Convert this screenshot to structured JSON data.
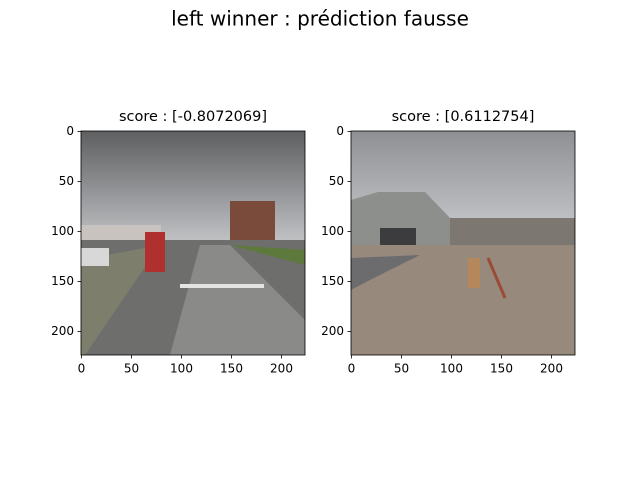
{
  "title": "left winner : prédiction fausse",
  "chart_data": [
    {
      "type": "image",
      "title": "score : [-0.8072069]",
      "xlim": [
        -0.5,
        223.5
      ],
      "ylim": [
        223.5,
        -0.5
      ],
      "xticks": [
        0,
        50,
        100,
        150,
        200
      ],
      "yticks": [
        0,
        50,
        100,
        150,
        200
      ]
    },
    {
      "type": "image",
      "title": "score : [0.6112754]",
      "xlim": [
        -0.5,
        223.5
      ],
      "ylim": [
        223.5,
        -0.5
      ],
      "xticks": [
        0,
        50,
        100,
        150,
        200
      ],
      "yticks": [
        0,
        50,
        100,
        150,
        200
      ]
    }
  ]
}
